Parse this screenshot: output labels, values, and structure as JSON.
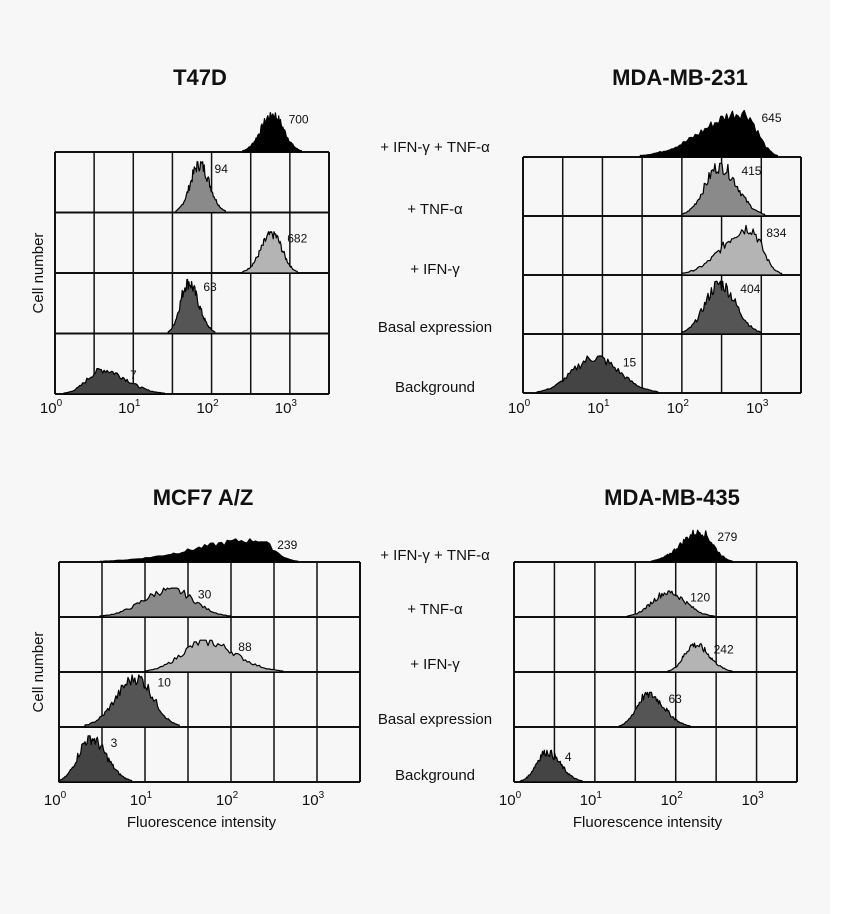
{
  "figure": {
    "background": "#f7f7f7",
    "row_conditions": [
      [
        "+ IFN-γ + TNF-α",
        "+ TNF-α",
        "+ IFN-γ",
        "Basal expression",
        "Background"
      ],
      [
        "+ IFN-γ + TNF-α",
        "+ TNF-α",
        "+ IFN-γ",
        "Basal expression",
        "Background"
      ]
    ],
    "colors": {
      "+ IFN-γ + TNF-α": "#000000",
      "+ TNF-α": "#8a8a8a",
      "+ IFN-γ": "#b4b4b4",
      "Basal expression": "#555555",
      "Background": "#444444"
    }
  },
  "chart_data": [
    {
      "type": "histogram",
      "title": "T47D",
      "ylabel": "Cell number",
      "xlabel": "",
      "xscale": "log",
      "xlim": [
        1,
        3162
      ],
      "xticks": [
        {
          "base": "10",
          "exp": "0"
        },
        {
          "base": "10",
          "exp": "1"
        },
        {
          "base": "10",
          "exp": "2"
        },
        {
          "base": "10",
          "exp": "3"
        }
      ],
      "grid": true,
      "series": [
        {
          "name": "+ IFN-γ + TNF-α",
          "label": "700",
          "peak": 600,
          "range": [
            250,
            1400
          ],
          "rel_height": 0.62
        },
        {
          "name": "+ TNF-α",
          "label": "94",
          "peak": 70,
          "range": [
            35,
            150
          ],
          "rel_height": 0.8
        },
        {
          "name": "+ IFN-γ",
          "label": "682",
          "peak": 600,
          "range": [
            250,
            1250
          ],
          "rel_height": 0.65
        },
        {
          "name": "Basal expression",
          "label": "63",
          "peak": 50,
          "range": [
            28,
            110
          ],
          "rel_height": 0.85
        },
        {
          "name": "Background",
          "label": "7",
          "peak": 4,
          "range": [
            1.3,
            25
          ],
          "rel_height": 0.4
        }
      ]
    },
    {
      "type": "histogram",
      "title": "MDA-MB-231",
      "ylabel": "",
      "xlabel": "",
      "xscale": "log",
      "xlim": [
        1,
        3162
      ],
      "xticks": [
        {
          "base": "10",
          "exp": "0"
        },
        {
          "base": "10",
          "exp": "1"
        },
        {
          "base": "10",
          "exp": "2"
        },
        {
          "base": "10",
          "exp": "3"
        }
      ],
      "grid": true,
      "series": [
        {
          "name": "+ IFN-γ + TNF-α",
          "label": "645",
          "peak": 600,
          "range": [
            30,
            1600
          ],
          "rel_height": 0.75
        },
        {
          "name": "+ TNF-α",
          "label": "415",
          "peak": 300,
          "range": [
            100,
            1100
          ],
          "rel_height": 0.85
        },
        {
          "name": "+ IFN-γ",
          "label": "834",
          "peak": 700,
          "range": [
            100,
            1800
          ],
          "rel_height": 0.8
        },
        {
          "name": "Basal expression",
          "label": "404",
          "peak": 300,
          "range": [
            100,
            1000
          ],
          "rel_height": 0.85
        },
        {
          "name": "Background",
          "label": "15",
          "peak": 8,
          "range": [
            1.5,
            50
          ],
          "rel_height": 0.6
        }
      ]
    },
    {
      "type": "histogram",
      "title": "MCF7 A/Z",
      "ylabel": "Cell number",
      "xlabel": "Fluorescence intensity",
      "xscale": "log",
      "xlim": [
        1,
        3162
      ],
      "xticks": [
        {
          "base": "10",
          "exp": "0"
        },
        {
          "base": "10",
          "exp": "1"
        },
        {
          "base": "10",
          "exp": "2"
        },
        {
          "base": "10",
          "exp": "3"
        }
      ],
      "grid": true,
      "series": [
        {
          "name": "+ IFN-γ + TNF-α",
          "label": "239",
          "peak": 200,
          "range": [
            3,
            600
          ],
          "rel_height": 0.4
        },
        {
          "name": "+ TNF-α",
          "label": "30",
          "peak": 20,
          "range": [
            3,
            100
          ],
          "rel_height": 0.5
        },
        {
          "name": "+ IFN-γ",
          "label": "88",
          "peak": 50,
          "range": [
            10,
            400
          ],
          "rel_height": 0.55
        },
        {
          "name": "Basal expression",
          "label": "10",
          "peak": 8,
          "range": [
            2,
            25
          ],
          "rel_height": 0.9
        },
        {
          "name": "Background",
          "label": "3",
          "peak": 2.3,
          "range": [
            1,
            7
          ],
          "rel_height": 0.8
        }
      ]
    },
    {
      "type": "histogram",
      "title": "MDA-MB-435",
      "ylabel": "",
      "xlabel": "Fluorescence intensity",
      "xscale": "log",
      "xlim": [
        1,
        3162
      ],
      "xticks": [
        {
          "base": "10",
          "exp": "0"
        },
        {
          "base": "10",
          "exp": "1"
        },
        {
          "base": "10",
          "exp": "2"
        },
        {
          "base": "10",
          "exp": "3"
        }
      ],
      "grid": true,
      "series": [
        {
          "name": "+ IFN-γ + TNF-α",
          "label": "279",
          "peak": 200,
          "range": [
            50,
            500
          ],
          "rel_height": 0.55
        },
        {
          "name": "+ TNF-α",
          "label": "120",
          "peak": 80,
          "range": [
            25,
            300
          ],
          "rel_height": 0.45
        },
        {
          "name": "+ IFN-γ",
          "label": "242",
          "peak": 170,
          "range": [
            80,
            500
          ],
          "rel_height": 0.5
        },
        {
          "name": "Basal expression",
          "label": "63",
          "peak": 45,
          "range": [
            20,
            150
          ],
          "rel_height": 0.6
        },
        {
          "name": "Background",
          "label": "4",
          "peak": 2.5,
          "range": [
            1.2,
            7
          ],
          "rel_height": 0.55
        }
      ]
    }
  ]
}
